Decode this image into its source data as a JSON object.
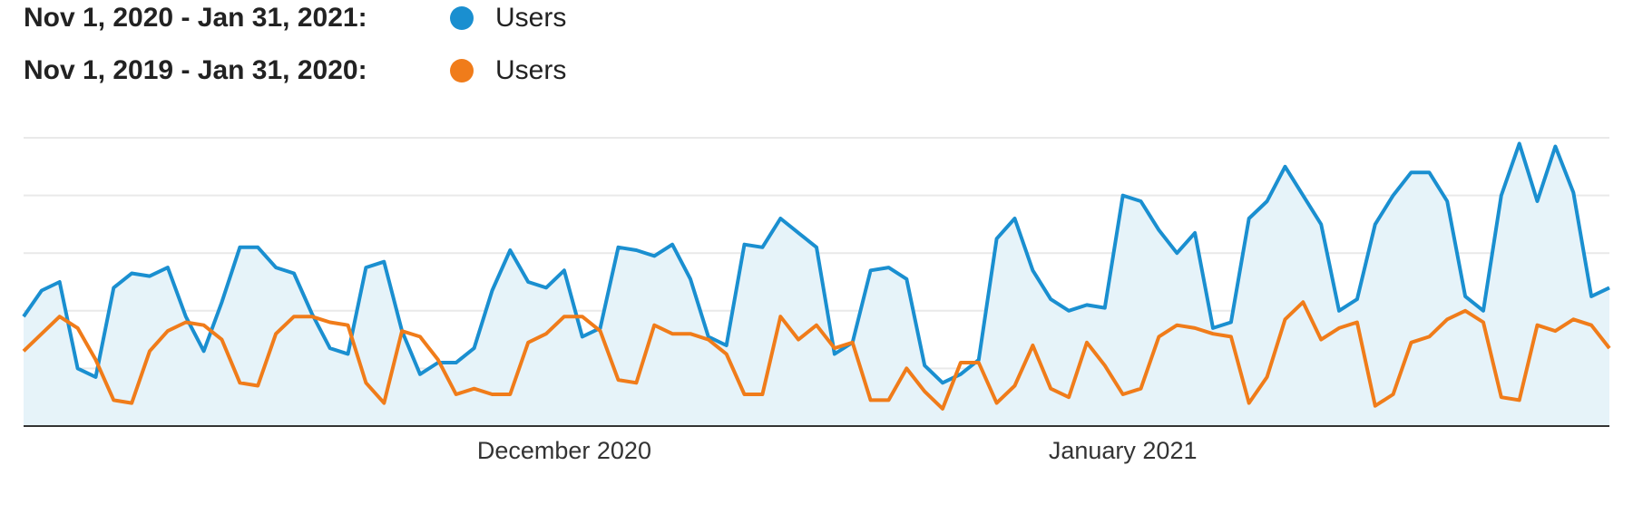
{
  "legend": [
    {
      "range": "Nov 1, 2020 - Jan 31, 2021:",
      "name": "Users",
      "color": "#1a8fd0"
    },
    {
      "range": "Nov 1, 2019 - Jan 31, 2020:",
      "name": "Users",
      "color": "#f07c1a"
    }
  ],
  "chart_data": {
    "type": "area",
    "grid": true,
    "ylim": [
      0,
      100
    ],
    "x_start": "Nov 1",
    "x_ticks": [
      {
        "label": "December 2020",
        "index": 30
      },
      {
        "label": "January 2021",
        "index": 61
      }
    ],
    "series": [
      {
        "name": "Users",
        "color": "#1a8fd0",
        "fill": "#e6f3f9",
        "values": [
          38,
          47,
          50,
          20,
          17,
          48,
          53,
          52,
          55,
          38,
          26,
          43,
          62,
          62,
          55,
          53,
          39,
          27,
          25,
          55,
          57,
          33,
          18,
          22,
          22,
          27,
          47,
          61,
          50,
          48,
          54,
          31,
          34,
          62,
          61,
          59,
          63,
          51,
          31,
          28,
          63,
          62,
          72,
          67,
          62,
          25,
          29,
          54,
          55,
          51,
          21,
          15,
          18,
          23,
          65,
          72,
          54,
          44,
          40,
          42,
          41,
          80,
          78,
          68,
          60,
          67,
          34,
          36,
          72,
          78,
          90,
          80,
          70,
          40,
          44,
          70,
          80,
          88,
          88,
          78,
          45,
          40,
          80,
          98,
          78,
          97,
          81,
          45,
          48
        ]
      },
      {
        "name": "Users",
        "color": "#f07c1a",
        "fill": "none",
        "values": [
          26,
          32,
          38,
          34,
          23,
          9,
          8,
          26,
          33,
          36,
          35,
          30,
          15,
          14,
          32,
          38,
          38,
          36,
          35,
          15,
          8,
          33,
          31,
          23,
          11,
          13,
          11,
          11,
          29,
          32,
          38,
          38,
          33,
          16,
          15,
          35,
          32,
          32,
          30,
          25,
          11,
          11,
          38,
          30,
          35,
          27,
          29,
          9,
          9,
          20,
          12,
          6,
          22,
          22,
          8,
          14,
          28,
          13,
          10,
          29,
          21,
          11,
          13,
          31,
          35,
          34,
          32,
          31,
          8,
          17,
          37,
          43,
          30,
          34,
          36,
          7,
          11,
          29,
          31,
          37,
          40,
          36,
          10,
          9,
          35,
          33,
          37,
          35,
          27
        ]
      }
    ]
  }
}
